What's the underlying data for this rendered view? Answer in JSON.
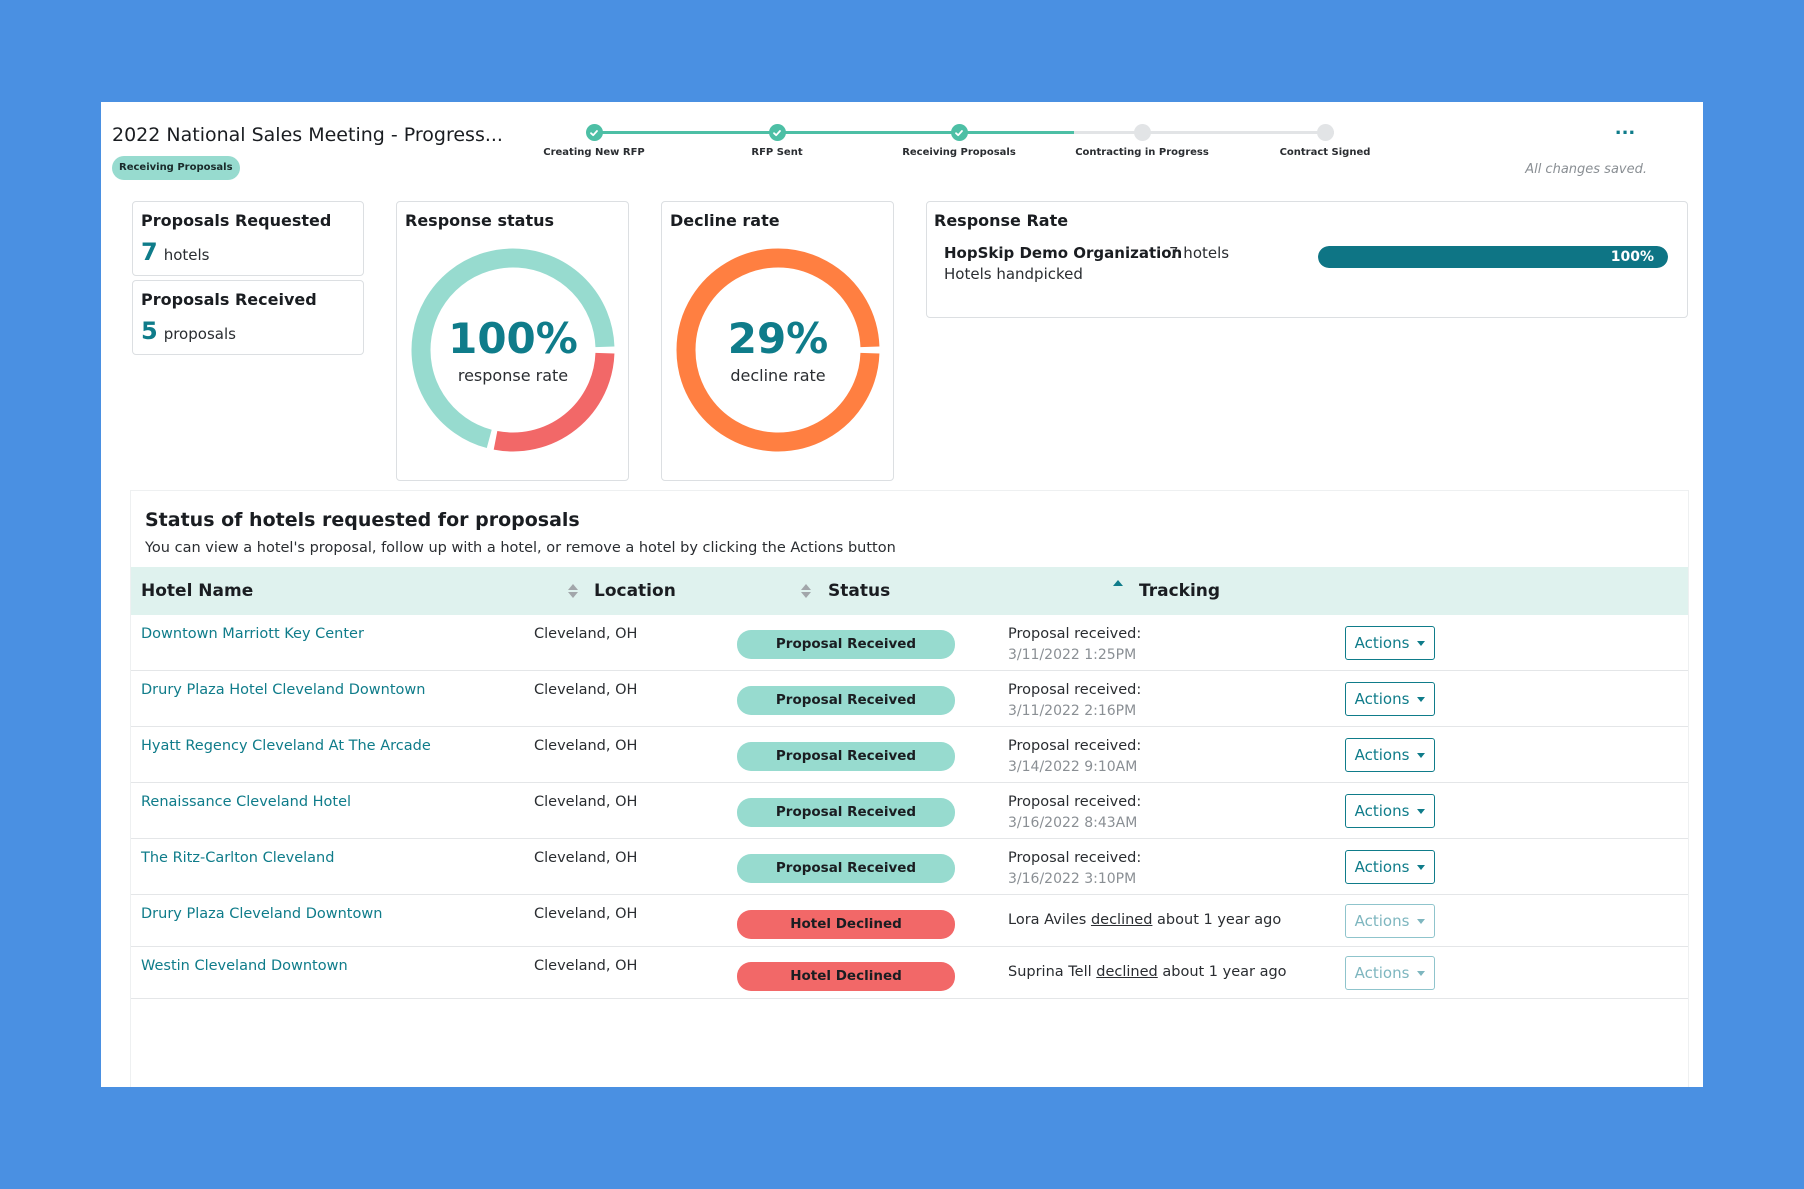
{
  "header": {
    "title": "2022 National Sales Meeting - Progress...",
    "stage_badge": "Receiving Proposals",
    "more_label": "...",
    "saved_text": "All changes saved."
  },
  "progress": {
    "steps": [
      {
        "label": "Creating New RFP",
        "state": "done"
      },
      {
        "label": "RFP Sent",
        "state": "done"
      },
      {
        "label": "Receiving Proposals",
        "state": "done"
      },
      {
        "label": "Contracting in Progress",
        "state": "todo"
      },
      {
        "label": "Contract Signed",
        "state": "todo"
      }
    ]
  },
  "stats": {
    "requested": {
      "title": "Proposals Requested",
      "value": "7",
      "unit": "hotels"
    },
    "received": {
      "title": "Proposals Received",
      "value": "5",
      "unit": "proposals"
    }
  },
  "response_status": {
    "title": "Response status",
    "pct": "100%",
    "sub": "response rate",
    "segments": [
      {
        "label": "received",
        "fraction": 0.714,
        "color": "#97dbcf"
      },
      {
        "label": "declined",
        "fraction": 0.286,
        "color": "#f26868"
      }
    ]
  },
  "decline_rate": {
    "title": "Decline rate",
    "pct": "29%",
    "sub": "decline rate",
    "color": "#ff7f41"
  },
  "response_rate": {
    "title": "Response Rate",
    "org": "HopSkip Demo Organization",
    "note": "Hotels handpicked",
    "count": "7 hotels",
    "fill_fraction": 1.0,
    "fill_label": "100%"
  },
  "table": {
    "title": "Status of hotels requested for proposals",
    "subtitle": "You can view a hotel's proposal, follow up with a hotel, or remove a hotel by clicking the Actions button",
    "headers": {
      "hotel": "Hotel Name",
      "location": "Location",
      "status": "Status",
      "tracking": "Tracking"
    },
    "actions_label": "Actions",
    "rows": [
      {
        "hotel": "Downtown Marriott Key Center",
        "location": "Cleveland, OH",
        "status": "Proposal Received",
        "t1": "Proposal received:",
        "t2": "3/11/2022 1:25PM"
      },
      {
        "hotel": "Drury Plaza Hotel Cleveland Downtown",
        "location": "Cleveland, OH",
        "status": "Proposal Received",
        "t1": "Proposal received:",
        "t2": "3/11/2022 2:16PM"
      },
      {
        "hotel": "Hyatt Regency Cleveland At The Arcade",
        "location": "Cleveland, OH",
        "status": "Proposal Received",
        "t1": "Proposal received:",
        "t2": "3/14/2022 9:10AM"
      },
      {
        "hotel": "Renaissance Cleveland Hotel",
        "location": "Cleveland, OH",
        "status": "Proposal Received",
        "t1": "Proposal received:",
        "t2": "3/16/2022 8:43AM"
      },
      {
        "hotel": "The Ritz-Carlton Cleveland",
        "location": "Cleveland, OH",
        "status": "Proposal Received",
        "t1": "Proposal received:",
        "t2": "3/16/2022 3:10PM"
      },
      {
        "hotel": "Drury Plaza Cleveland Downtown",
        "location": "Cleveland, OH",
        "status": "Hotel Declined",
        "who": "Lora Aviles",
        "verb": "declined",
        "when": "about 1 year ago"
      },
      {
        "hotel": "Westin Cleveland Downtown",
        "location": "Cleveland, OH",
        "status": "Hotel Declined",
        "who": "Suprina Tell",
        "verb": "declined",
        "when": "about 1 year ago"
      }
    ]
  }
}
